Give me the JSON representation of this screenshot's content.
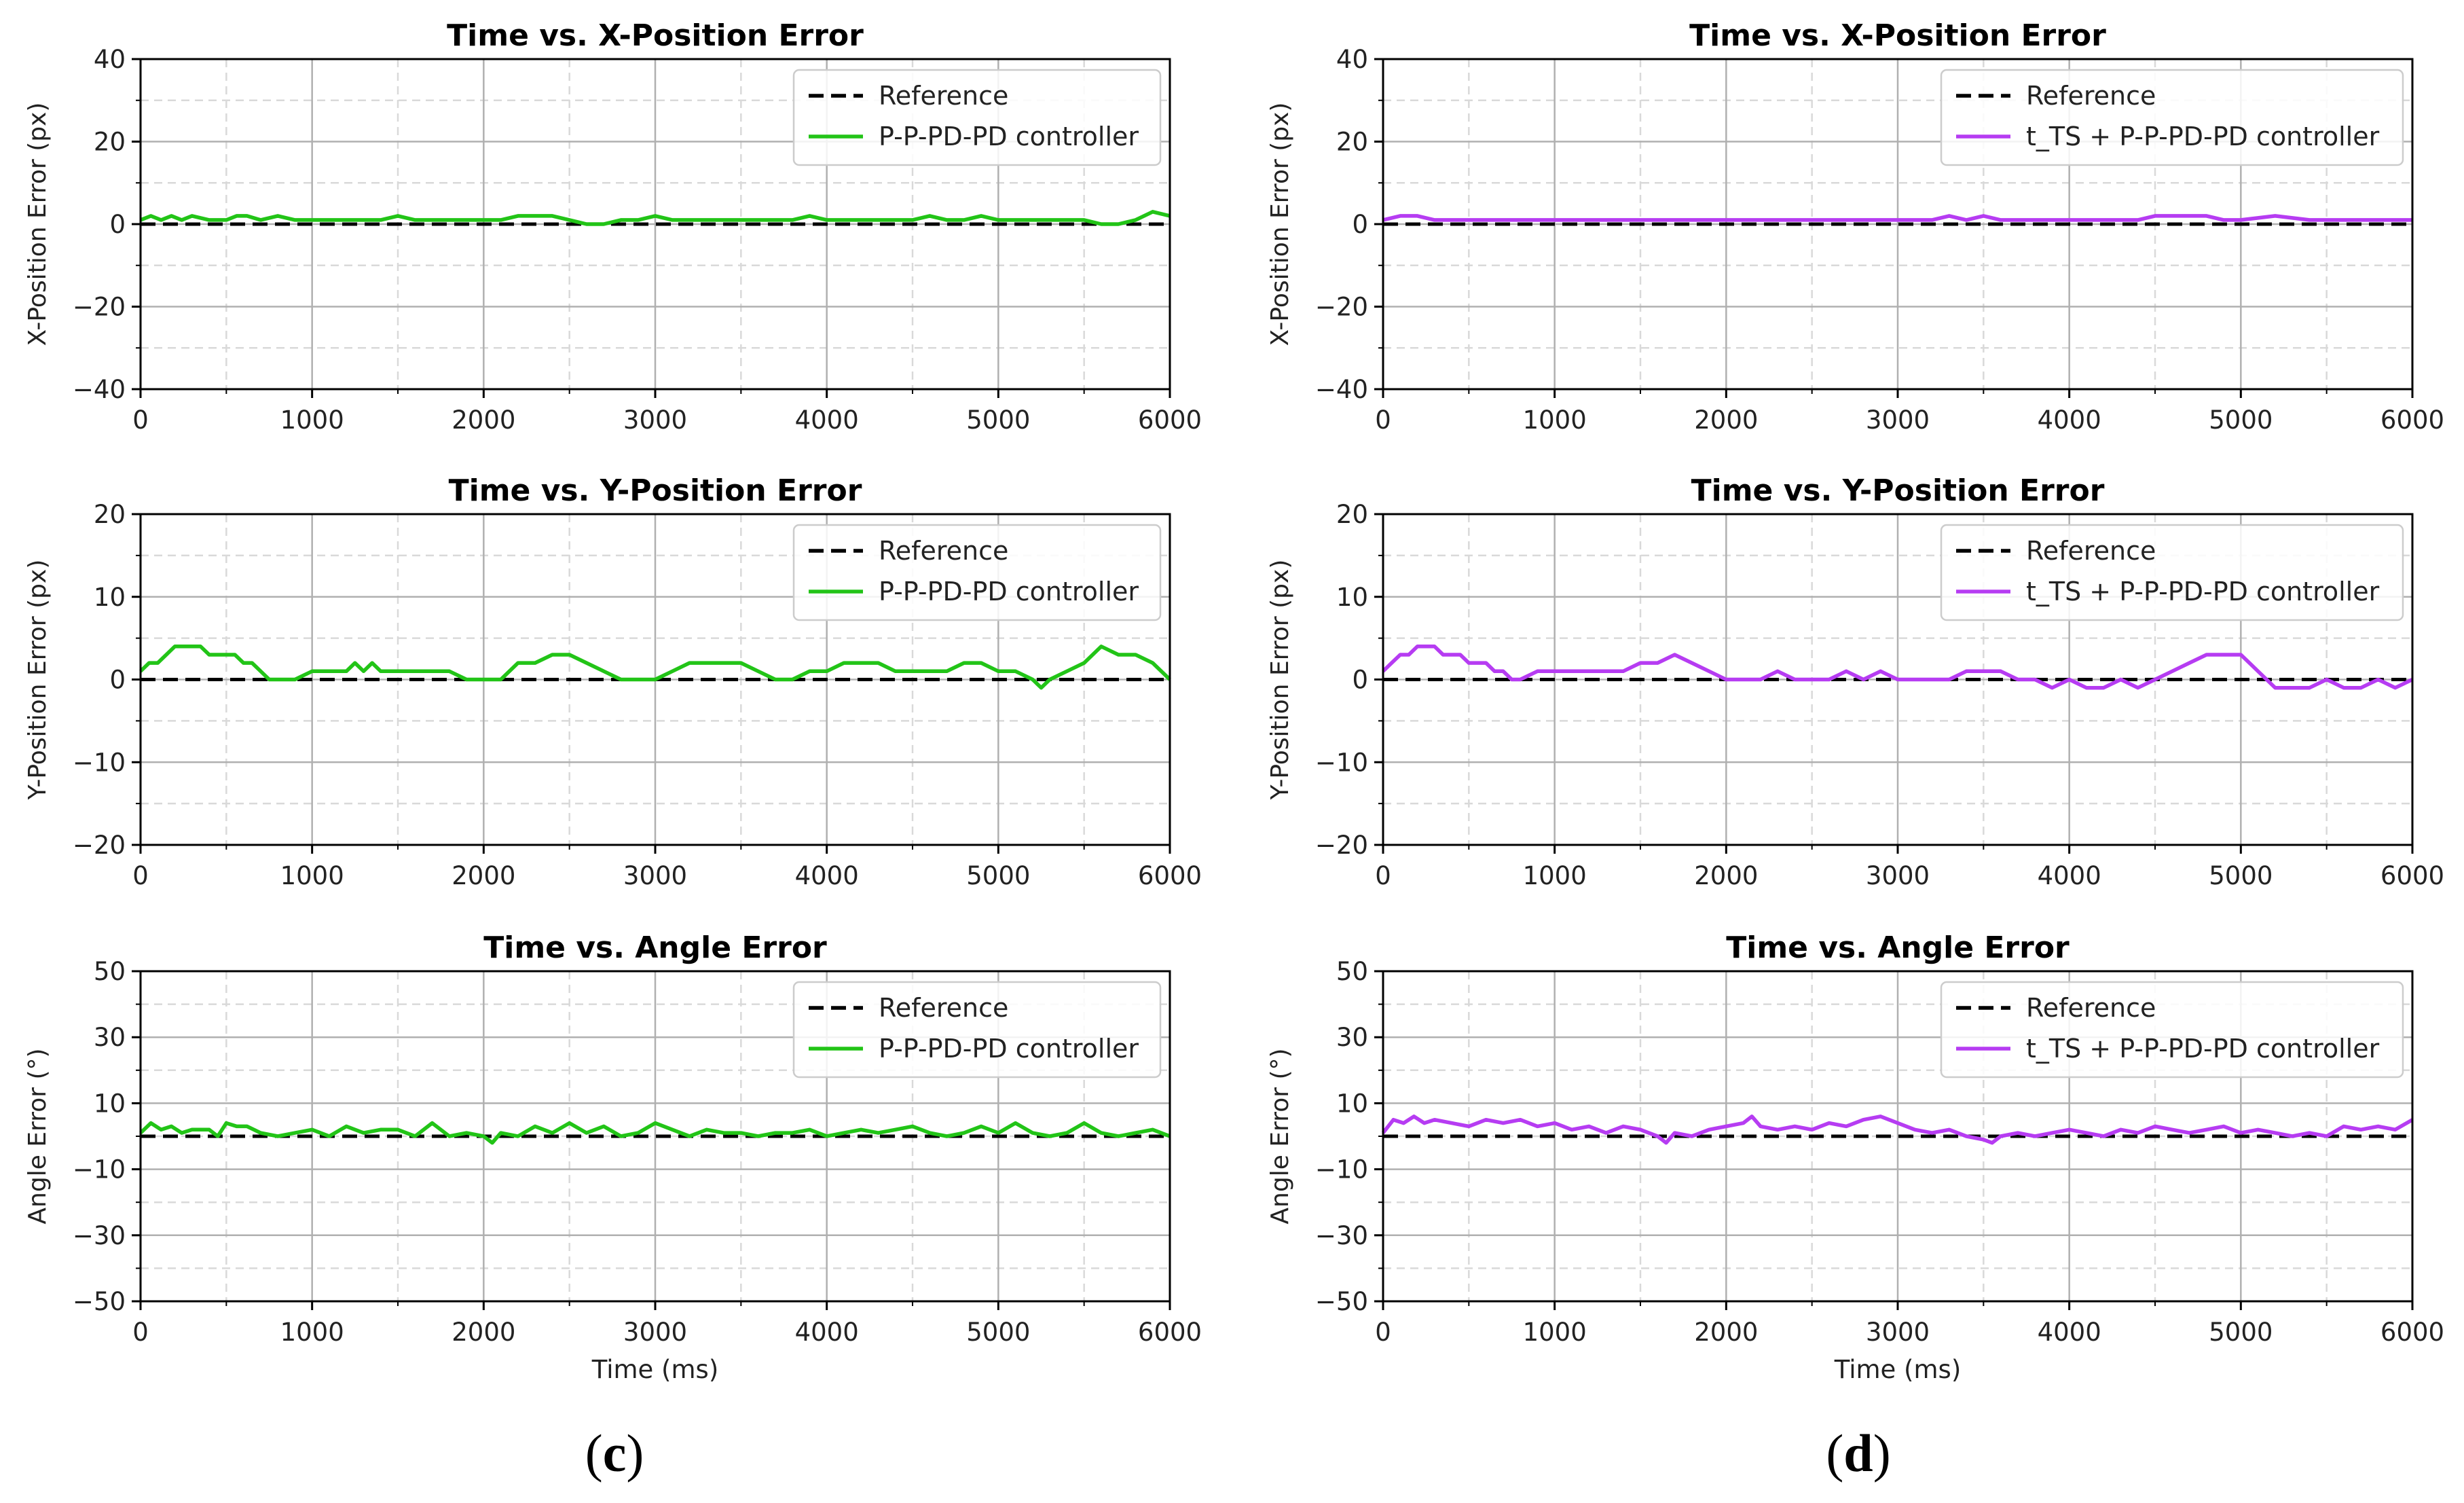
{
  "figure": {
    "captions": [
      {
        "open": "(",
        "letter": "c",
        "close": ")"
      },
      {
        "open": "(",
        "letter": "d",
        "close": ")"
      }
    ]
  },
  "colors": {
    "reference": "#000000",
    "left": "#22c417",
    "right": "#b63cf2"
  },
  "chart_data": [
    {
      "type": "line",
      "panel": "c",
      "row": 0,
      "title": "Time vs. X-Position Error",
      "xlabel": "",
      "ylabel": "X-Position Error (px)",
      "xlim": [
        0,
        6000
      ],
      "ylim": [
        -40,
        40
      ],
      "xticks": [
        0,
        1000,
        2000,
        3000,
        4000,
        5000,
        6000
      ],
      "yticks": [
        -40,
        -20,
        0,
        20,
        40
      ],
      "grid": true,
      "legend": "top-right",
      "series": [
        {
          "name": "Reference",
          "style": "dashed",
          "color": "#000000",
          "x": [
            0,
            6000
          ],
          "y": [
            0,
            0
          ]
        },
        {
          "name": "P-P-PD-PD controller",
          "style": "solid",
          "color": "#22c417",
          "x": [
            0,
            60,
            120,
            180,
            240,
            300,
            400,
            500,
            560,
            620,
            700,
            800,
            900,
            1000,
            1100,
            1200,
            1300,
            1400,
            1500,
            1600,
            1700,
            1800,
            1900,
            2000,
            2100,
            2200,
            2300,
            2400,
            2500,
            2600,
            2700,
            2800,
            2900,
            3000,
            3100,
            3200,
            3300,
            3400,
            3500,
            3600,
            3700,
            3800,
            3900,
            4000,
            4100,
            4200,
            4300,
            4400,
            4500,
            4600,
            4700,
            4800,
            4900,
            5000,
            5100,
            5200,
            5300,
            5400,
            5500,
            5600,
            5700,
            5800,
            5850,
            5900,
            6000
          ],
          "y": [
            1,
            2,
            1,
            2,
            1,
            2,
            1,
            1,
            2,
            2,
            1,
            2,
            1,
            1,
            1,
            1,
            1,
            1,
            2,
            1,
            1,
            1,
            1,
            1,
            1,
            2,
            2,
            2,
            1,
            0,
            0,
            1,
            1,
            2,
            1,
            1,
            1,
            1,
            1,
            1,
            1,
            1,
            2,
            1,
            1,
            1,
            1,
            1,
            1,
            2,
            1,
            1,
            2,
            1,
            1,
            1,
            1,
            1,
            1,
            0,
            0,
            1,
            2,
            3,
            2
          ]
        }
      ]
    },
    {
      "type": "line",
      "panel": "c",
      "row": 1,
      "title": "Time vs. Y-Position Error",
      "xlabel": "",
      "ylabel": "Y-Position Error (px)",
      "xlim": [
        0,
        6000
      ],
      "ylim": [
        -20,
        20
      ],
      "xticks": [
        0,
        1000,
        2000,
        3000,
        4000,
        5000,
        6000
      ],
      "yticks": [
        -20,
        -10,
        0,
        10,
        20
      ],
      "grid": true,
      "legend": "top-right",
      "series": [
        {
          "name": "Reference",
          "style": "dashed",
          "color": "#000000",
          "x": [
            0,
            6000
          ],
          "y": [
            0,
            0
          ]
        },
        {
          "name": "P-P-PD-PD controller",
          "style": "solid",
          "color": "#22c417",
          "x": [
            0,
            50,
            100,
            150,
            200,
            250,
            300,
            350,
            400,
            450,
            500,
            550,
            600,
            650,
            700,
            750,
            800,
            900,
            1000,
            1100,
            1200,
            1250,
            1300,
            1350,
            1400,
            1500,
            1600,
            1700,
            1800,
            1900,
            2000,
            2100,
            2200,
            2300,
            2400,
            2500,
            2600,
            2700,
            2800,
            2900,
            3000,
            3100,
            3200,
            3300,
            3400,
            3500,
            3600,
            3700,
            3800,
            3900,
            4000,
            4100,
            4200,
            4300,
            4400,
            4500,
            4600,
            4700,
            4800,
            4900,
            5000,
            5100,
            5200,
            5250,
            5300,
            5400,
            5500,
            5600,
            5700,
            5800,
            5900,
            6000
          ],
          "y": [
            1,
            2,
            2,
            3,
            4,
            4,
            4,
            4,
            3,
            3,
            3,
            3,
            2,
            2,
            1,
            0,
            0,
            0,
            1,
            1,
            1,
            2,
            1,
            2,
            1,
            1,
            1,
            1,
            1,
            0,
            0,
            0,
            2,
            2,
            3,
            3,
            2,
            1,
            0,
            0,
            0,
            1,
            2,
            2,
            2,
            2,
            1,
            0,
            0,
            1,
            1,
            2,
            2,
            2,
            1,
            1,
            1,
            1,
            2,
            2,
            1,
            1,
            0,
            -1,
            0,
            1,
            2,
            4,
            3,
            3,
            2,
            0
          ]
        }
      ]
    },
    {
      "type": "line",
      "panel": "c",
      "row": 2,
      "title": "Time vs. Angle Error",
      "xlabel": "Time (ms)",
      "ylabel": "Angle Error (°)",
      "xlim": [
        0,
        6000
      ],
      "ylim": [
        -50,
        50
      ],
      "xticks": [
        0,
        1000,
        2000,
        3000,
        4000,
        5000,
        6000
      ],
      "yticks": [
        -50,
        -30,
        -10,
        10,
        30,
        50
      ],
      "grid": true,
      "legend": "top-right",
      "series": [
        {
          "name": "Reference",
          "style": "dashed",
          "color": "#000000",
          "x": [
            0,
            6000
          ],
          "y": [
            0,
            0
          ]
        },
        {
          "name": "P-P-PD-PD controller",
          "style": "solid",
          "color": "#22c417",
          "x": [
            0,
            60,
            120,
            180,
            240,
            300,
            400,
            450,
            500,
            560,
            620,
            700,
            800,
            900,
            1000,
            1100,
            1200,
            1300,
            1400,
            1500,
            1600,
            1700,
            1800,
            1900,
            2000,
            2050,
            2100,
            2200,
            2300,
            2400,
            2500,
            2600,
            2700,
            2800,
            2900,
            3000,
            3100,
            3200,
            3300,
            3400,
            3500,
            3600,
            3700,
            3800,
            3900,
            4000,
            4100,
            4200,
            4300,
            4400,
            4500,
            4600,
            4700,
            4800,
            4900,
            5000,
            5100,
            5200,
            5300,
            5400,
            5500,
            5600,
            5700,
            5800,
            5900,
            6000
          ],
          "y": [
            1,
            4,
            2,
            3,
            1,
            2,
            2,
            0,
            4,
            3,
            3,
            1,
            0,
            1,
            2,
            0,
            3,
            1,
            2,
            2,
            0,
            4,
            0,
            1,
            0,
            -2,
            1,
            0,
            3,
            1,
            4,
            1,
            3,
            0,
            1,
            4,
            2,
            0,
            2,
            1,
            1,
            0,
            1,
            1,
            2,
            0,
            1,
            2,
            1,
            2,
            3,
            1,
            0,
            1,
            3,
            1,
            4,
            1,
            0,
            1,
            4,
            1,
            0,
            1,
            2,
            0
          ]
        }
      ]
    },
    {
      "type": "line",
      "panel": "d",
      "row": 0,
      "title": "Time vs. X-Position Error",
      "xlabel": "",
      "ylabel": "X-Position Error (px)",
      "xlim": [
        0,
        6000
      ],
      "ylim": [
        -40,
        40
      ],
      "xticks": [
        0,
        1000,
        2000,
        3000,
        4000,
        5000,
        6000
      ],
      "yticks": [
        -40,
        -20,
        0,
        20,
        40
      ],
      "grid": true,
      "legend": "top-right",
      "series": [
        {
          "name": "Reference",
          "style": "dashed",
          "color": "#000000",
          "x": [
            0,
            6000
          ],
          "y": [
            0,
            0
          ]
        },
        {
          "name": "t_TS + P-P-PD-PD controller",
          "style": "solid",
          "color": "#b63cf2",
          "x": [
            0,
            100,
            200,
            300,
            400,
            600,
            800,
            1000,
            1200,
            1400,
            1600,
            1800,
            2000,
            2200,
            2400,
            2600,
            2800,
            3000,
            3200,
            3300,
            3400,
            3500,
            3600,
            3800,
            4000,
            4200,
            4400,
            4500,
            4600,
            4700,
            4800,
            4900,
            5000,
            5200,
            5400,
            5600,
            5800,
            6000
          ],
          "y": [
            1,
            2,
            2,
            1,
            1,
            1,
            1,
            1,
            1,
            1,
            1,
            1,
            1,
            1,
            1,
            1,
            1,
            1,
            1,
            2,
            1,
            2,
            1,
            1,
            1,
            1,
            1,
            2,
            2,
            2,
            2,
            1,
            1,
            2,
            1,
            1,
            1,
            1
          ]
        }
      ]
    },
    {
      "type": "line",
      "panel": "d",
      "row": 1,
      "title": "Time vs. Y-Position Error",
      "xlabel": "",
      "ylabel": "Y-Position Error (px)",
      "xlim": [
        0,
        6000
      ],
      "ylim": [
        -20,
        20
      ],
      "xticks": [
        0,
        1000,
        2000,
        3000,
        4000,
        5000,
        6000
      ],
      "yticks": [
        -20,
        -10,
        0,
        10,
        20
      ],
      "grid": true,
      "legend": "top-right",
      "series": [
        {
          "name": "Reference",
          "style": "dashed",
          "color": "#000000",
          "x": [
            0,
            6000
          ],
          "y": [
            0,
            0
          ]
        },
        {
          "name": "t_TS + P-P-PD-PD controller",
          "style": "solid",
          "color": "#b63cf2",
          "x": [
            0,
            50,
            100,
            150,
            200,
            250,
            300,
            350,
            400,
            450,
            500,
            550,
            600,
            650,
            700,
            750,
            800,
            900,
            1000,
            1100,
            1200,
            1300,
            1400,
            1500,
            1600,
            1700,
            1800,
            1900,
            2000,
            2100,
            2200,
            2300,
            2400,
            2500,
            2600,
            2700,
            2800,
            2900,
            3000,
            3100,
            3200,
            3300,
            3400,
            3500,
            3600,
            3700,
            3800,
            3900,
            4000,
            4100,
            4200,
            4300,
            4400,
            4500,
            4600,
            4700,
            4800,
            4900,
            5000,
            5050,
            5100,
            5200,
            5300,
            5400,
            5500,
            5600,
            5700,
            5800,
            5900,
            6000
          ],
          "y": [
            1,
            2,
            3,
            3,
            4,
            4,
            4,
            3,
            3,
            3,
            2,
            2,
            2,
            1,
            1,
            0,
            0,
            1,
            1,
            1,
            1,
            1,
            1,
            2,
            2,
            3,
            2,
            1,
            0,
            0,
            0,
            1,
            0,
            0,
            0,
            1,
            0,
            1,
            0,
            0,
            0,
            0,
            1,
            1,
            1,
            0,
            0,
            -1,
            0,
            -1,
            -1,
            0,
            -1,
            0,
            1,
            2,
            3,
            3,
            3,
            2,
            1,
            -1,
            -1,
            -1,
            0,
            -1,
            -1,
            0,
            -1,
            0
          ]
        }
      ]
    },
    {
      "type": "line",
      "panel": "d",
      "row": 2,
      "title": "Time vs. Angle Error",
      "xlabel": "Time (ms)",
      "ylabel": "Angle Error (°)",
      "xlim": [
        0,
        6000
      ],
      "ylim": [
        -50,
        50
      ],
      "xticks": [
        0,
        1000,
        2000,
        3000,
        4000,
        5000,
        6000
      ],
      "yticks": [
        -50,
        -30,
        -10,
        10,
        30,
        50
      ],
      "grid": true,
      "legend": "top-right",
      "series": [
        {
          "name": "Reference",
          "style": "dashed",
          "color": "#000000",
          "x": [
            0,
            6000
          ],
          "y": [
            0,
            0
          ]
        },
        {
          "name": "t_TS + P-P-PD-PD controller",
          "style": "solid",
          "color": "#b63cf2",
          "x": [
            0,
            60,
            120,
            180,
            240,
            300,
            400,
            500,
            600,
            700,
            800,
            900,
            1000,
            1100,
            1200,
            1300,
            1400,
            1500,
            1600,
            1650,
            1700,
            1800,
            1900,
            2000,
            2100,
            2150,
            2200,
            2300,
            2400,
            2500,
            2600,
            2700,
            2800,
            2900,
            3000,
            3100,
            3200,
            3300,
            3400,
            3500,
            3550,
            3600,
            3700,
            3800,
            3900,
            4000,
            4100,
            4200,
            4300,
            4400,
            4500,
            4600,
            4700,
            4800,
            4900,
            5000,
            5100,
            5200,
            5300,
            5400,
            5500,
            5600,
            5700,
            5800,
            5900,
            6000
          ],
          "y": [
            1,
            5,
            4,
            6,
            4,
            5,
            4,
            3,
            5,
            4,
            5,
            3,
            4,
            2,
            3,
            1,
            3,
            2,
            0,
            -2,
            1,
            0,
            2,
            3,
            4,
            6,
            3,
            2,
            3,
            2,
            4,
            3,
            5,
            6,
            4,
            2,
            1,
            2,
            0,
            -1,
            -2,
            0,
            1,
            0,
            1,
            2,
            1,
            0,
            2,
            1,
            3,
            2,
            1,
            2,
            3,
            1,
            2,
            1,
            0,
            1,
            0,
            3,
            2,
            3,
            2,
            5
          ]
        }
      ]
    }
  ]
}
